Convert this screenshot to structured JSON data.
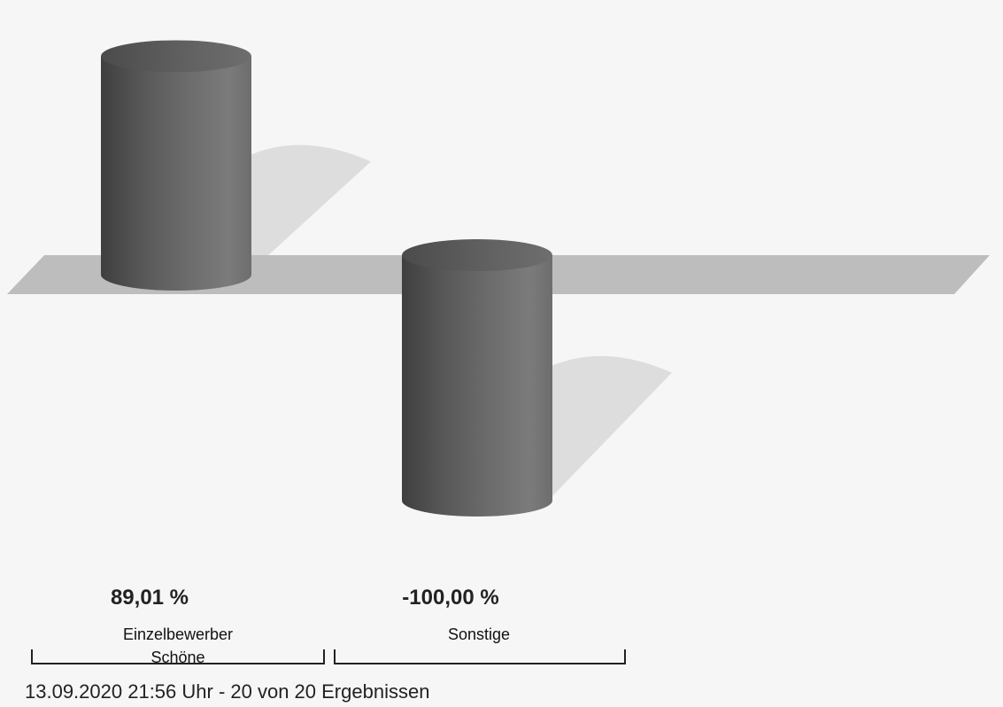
{
  "chart_data": {
    "type": "bar",
    "style": "3d-cylinder",
    "categories": [
      [
        "Einzelbewerber",
        "Schöne"
      ],
      [
        "Sonstige"
      ]
    ],
    "values": [
      89.01,
      -100.0
    ],
    "value_labels": [
      "89,01 %",
      "-100,00 %"
    ],
    "ylim": [
      -100,
      100
    ],
    "grid": false,
    "legend": "none",
    "bar_color": "#5d5d5d",
    "baseline_plane_color": "#bdbdbd",
    "shadow_color": "#dddddd",
    "background": "#f6f6f6"
  },
  "footer": {
    "text": "13.09.2020 21:56 Uhr - 20 von 20 Ergebnissen"
  }
}
